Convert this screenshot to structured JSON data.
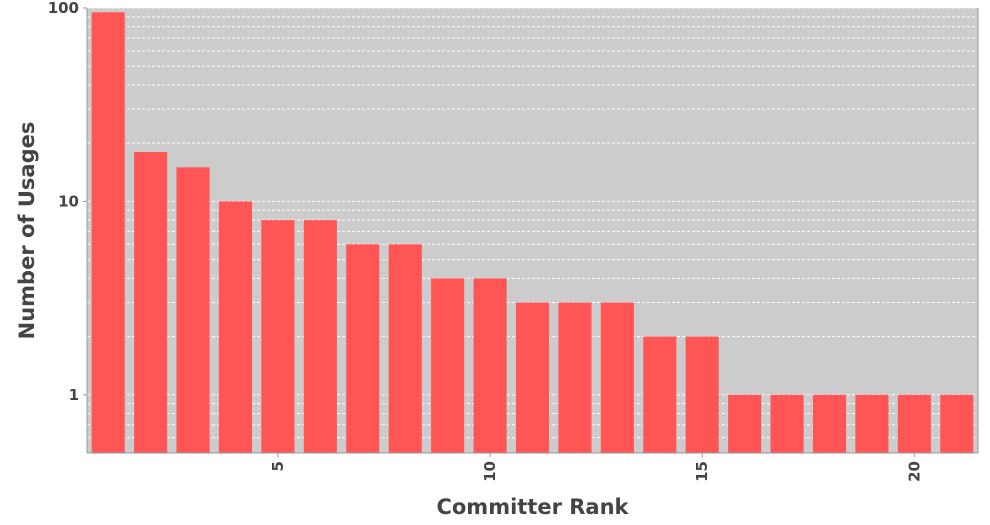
{
  "chart_data": {
    "type": "bar",
    "title": "",
    "xlabel": "Committer Rank",
    "ylabel": "Number of Usages",
    "x": [
      1,
      2,
      3,
      4,
      5,
      6,
      7,
      8,
      9,
      10,
      11,
      12,
      13,
      14,
      15,
      16,
      17,
      18,
      19,
      20,
      21
    ],
    "values": [
      95,
      18,
      15,
      10,
      8,
      8,
      6,
      6,
      4,
      4,
      3,
      3,
      3,
      2,
      2,
      1,
      1,
      1,
      1,
      1,
      1
    ],
    "x_ticks": [
      5,
      10,
      15,
      20
    ],
    "x_tick_labels": [
      "5",
      "10",
      "15",
      "20"
    ],
    "y_scale": "log",
    "ylim": [
      0.5,
      100
    ],
    "y_ticks": [
      1,
      10,
      100
    ],
    "y_tick_labels": [
      "1",
      "10",
      "100"
    ],
    "grid": "y-minor-dashed",
    "bar_color": "#ff5555",
    "plot_background": "#cccccc",
    "grid_color": "#ffffff"
  }
}
